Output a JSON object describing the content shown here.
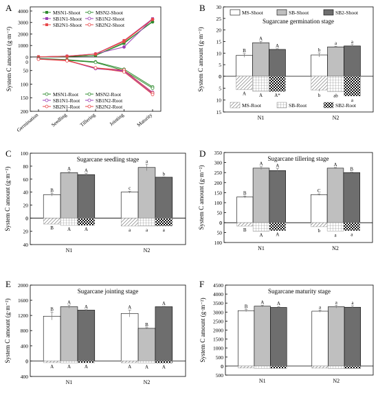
{
  "patterns": {
    "fill_white": "#ffffff",
    "fill_light": "#bfbfbf",
    "fill_dark": "#6e6e6e",
    "axis_color": "#000000"
  },
  "chart_data": [
    {
      "panel": "A",
      "type": "line",
      "ylabel": "System C amount (g·m⁻²)",
      "x": [
        "Germination",
        "Seedling",
        "Tillering",
        "Jointing",
        "Maturity"
      ],
      "upper": {
        "ylim": [
          0,
          4000
        ],
        "yticks": [
          "0",
          "1000",
          "2000",
          "3000",
          "4000"
        ],
        "series": [
          {
            "name": "MSN1-Shoot",
            "color": "#2e8b2e",
            "marker": "square",
            "values": [
              9,
              35,
              130,
              1180,
              3100
            ]
          },
          {
            "name": "MSN2-Shoot",
            "color": "#2e8b2e",
            "marker": "circle",
            "values": [
              9,
              40,
              140,
              1250,
              3050
            ]
          },
          {
            "name": "SB1N1-Shoot",
            "color": "#9b3fb5",
            "marker": "square",
            "values": [
              14,
              70,
              270,
              1430,
              3330
            ]
          },
          {
            "name": "SB1N2-Shoot",
            "color": "#9b3fb5",
            "marker": "circle",
            "values": [
              12,
              78,
              270,
              870,
              3300
            ]
          },
          {
            "name": "SB2N1-Shoot",
            "color": "#e8484a",
            "marker": "square",
            "values": [
              11,
              67,
              260,
              1340,
              3260
            ]
          },
          {
            "name": "SB2N2-Shoot",
            "color": "#e8484a",
            "marker": "circle",
            "values": [
              13,
              63,
              250,
              1420,
              3270
            ]
          }
        ]
      },
      "lower": {
        "ylim": [
          0,
          200
        ],
        "yticks": [
          "0",
          "50",
          "100",
          "150",
          "200"
        ],
        "series": [
          {
            "name": "MSN1-Root",
            "color": "#2e8b2e",
            "marker": "circle",
            "values": [
              5,
              10,
              18,
              45,
              110
            ]
          },
          {
            "name": "MSN2-Root",
            "color": "#2e8b2e",
            "marker": "circle",
            "values": [
              6,
              12,
              20,
              50,
              115
            ]
          },
          {
            "name": "SB1N1-Root",
            "color": "#9b3fb5",
            "marker": "circle",
            "values": [
              7,
              12,
              42,
              50,
              130
            ]
          },
          {
            "name": "SB1N2-Root",
            "color": "#9b3fb5",
            "marker": "circle",
            "values": [
              7,
              13,
              43,
              52,
              135
            ]
          },
          {
            "name": "SB2N1-Root",
            "color": "#e8484a",
            "marker": "circle",
            "values": [
              8,
              12,
              40,
              48,
              132
            ]
          },
          {
            "name": "SB2N2-Root",
            "color": "#e8484a",
            "marker": "circle",
            "values": [
              8,
              14,
              40,
              55,
              138
            ]
          }
        ]
      }
    },
    {
      "panel": "B",
      "type": "bar",
      "title": "Sugarcane germination stage",
      "ylabel": "System C amount (g·m⁻²)",
      "categories": [
        "N1",
        "N2"
      ],
      "upper": {
        "ylim": [
          0,
          30
        ],
        "yticks": [
          "0",
          "5",
          "10",
          "15",
          "20",
          "25",
          "30"
        ],
        "series": [
          {
            "name": "MS-Shoot",
            "fill": "white",
            "values": [
              9,
              9.2
            ],
            "err": [
              0.8,
              0.9
            ],
            "letters": [
              "B",
              "b"
            ]
          },
          {
            "name": "SB-Shoot",
            "fill": "light",
            "values": [
              14.5,
              12.7
            ],
            "err": [
              0.5,
              0.3
            ],
            "letters": [
              "A",
              "a"
            ]
          },
          {
            "name": "SB2-Shoot",
            "fill": "dark",
            "values": [
              11.6,
              13.1
            ],
            "err": [
              0.3,
              0.6
            ],
            "letters": [
              "A",
              "a"
            ]
          }
        ]
      },
      "lower": {
        "ylim": [
          0,
          15
        ],
        "yticks": [
          "0",
          "5",
          "10",
          "15"
        ],
        "series": [
          {
            "name": "MS-Root",
            "pattern": "diag",
            "values": [
              5.6,
              5.8
            ],
            "err": [
              0,
              0.5
            ],
            "letters": [
              "A",
              "b"
            ]
          },
          {
            "name": "SB-Root",
            "pattern": "grid",
            "values": [
              6.3,
              6.5
            ],
            "err": [
              0,
              0
            ],
            "letters": [
              "A",
              "ab"
            ]
          },
          {
            "name": "SB2-Root",
            "pattern": "check",
            "values": [
              6.4,
              8.3
            ],
            "err": [
              0,
              0
            ],
            "letters": [
              "A*",
              "a"
            ]
          }
        ]
      }
    },
    {
      "panel": "C",
      "type": "bar",
      "title": "Sugarcane seedling stage",
      "ylabel": "System C amount (g·m⁻²)",
      "categories": [
        "N1",
        "N2"
      ],
      "upper": {
        "ylim": [
          0,
          100
        ],
        "yticks": [
          "0",
          "20",
          "40",
          "60",
          "80",
          "100"
        ],
        "series": [
          {
            "fill": "white",
            "values": [
              36,
              40
            ],
            "err": [
              2,
              1.5
            ],
            "letters": [
              "B",
              "c"
            ]
          },
          {
            "fill": "light",
            "values": [
              70,
              78
            ],
            "err": [
              1.5,
              5
            ],
            "letters": [
              "A",
              "a"
            ]
          },
          {
            "fill": "dark",
            "values": [
              67,
              63
            ],
            "err": [
              1.5,
              0.5
            ],
            "letters": [
              "A",
              "b"
            ]
          }
        ]
      },
      "lower": {
        "ylim": [
          0,
          40
        ],
        "yticks": [
          "20",
          "40"
        ],
        "zero_label": "0",
        "series": [
          {
            "pattern": "diag",
            "values": [
              9,
              12
            ],
            "err": [
              0,
              0
            ],
            "letters": [
              "B",
              "a"
            ]
          },
          {
            "pattern": "grid",
            "values": [
              11,
              12
            ],
            "err": [
              0,
              0
            ],
            "letters": [
              "A",
              "a"
            ]
          },
          {
            "pattern": "check",
            "values": [
              11,
              12
            ],
            "err": [
              0,
              0
            ],
            "letters": [
              "A",
              "a"
            ]
          }
        ]
      },
      "upper_labels_override": {}
    },
    {
      "panel": "D",
      "type": "bar",
      "title": "Sugarcane tillering stage",
      "ylabel": "System C amount (g·m⁻²)",
      "categories": [
        "N1",
        "N2"
      ],
      "upper": {
        "ylim": [
          0,
          350
        ],
        "yticks": [
          "0",
          "50",
          "100",
          "150",
          "200",
          "250",
          "300",
          "350"
        ],
        "series": [
          {
            "fill": "white",
            "values": [
              128,
              140
            ],
            "err": [
              5,
              4
            ],
            "letters": [
              "B",
              "C"
            ]
          },
          {
            "fill": "light",
            "values": [
              272,
              272
            ],
            "err": [
              7,
              3
            ],
            "letters": [
              "A",
              "A"
            ]
          },
          {
            "fill": "dark",
            "values": [
              260,
              250
            ],
            "err": [
              10,
              2
            ],
            "letters": [
              "A",
              "B"
            ]
          }
        ]
      },
      "lower": {
        "ylim": [
          0,
          100
        ],
        "yticks": [
          "50",
          "100"
        ],
        "zero_label": "0",
        "series": [
          {
            "pattern": "diag",
            "values": [
              17,
              20
            ],
            "err": [
              0,
              0
            ],
            "letters": [
              "B",
              "b"
            ]
          },
          {
            "pattern": "grid",
            "values": [
              43,
              42
            ],
            "err": [
              0,
              0
            ],
            "letters": [
              "A",
              "a"
            ]
          },
          {
            "pattern": "check",
            "values": [
              40,
              40
            ],
            "err": [
              0,
              0
            ],
            "letters": [
              "A",
              "a"
            ]
          }
        ]
      }
    },
    {
      "panel": "E",
      "type": "bar",
      "title": "Sugarcane jointing stage",
      "ylabel": "System C amount (g·m⁻²)",
      "categories": [
        "N1",
        "N2"
      ],
      "upper": {
        "ylim": [
          0,
          2000
        ],
        "yticks": [
          "0",
          "400",
          "800",
          "1200",
          "1600",
          "2000"
        ],
        "series": [
          {
            "fill": "white",
            "values": [
              1180,
              1250
            ],
            "err": [
              100,
              90
            ],
            "letters": [
              "B",
              "A"
            ]
          },
          {
            "fill": "light",
            "values": [
              1430,
              860
            ],
            "err": [
              40,
              20
            ],
            "letters": [
              "A",
              "B"
            ]
          },
          {
            "fill": "dark",
            "values": [
              1340,
              1430
            ],
            "err": [
              10,
              10
            ],
            "letters": [
              "A",
              "A"
            ]
          }
        ]
      },
      "lower": {
        "ylim": [
          0,
          400
        ],
        "yticks": [
          "400"
        ],
        "zero_label": "0",
        "series": [
          {
            "pattern": "diag",
            "values": [
              45,
              48
            ],
            "err": [
              0,
              0
            ],
            "letters": [
              "A",
              "A"
            ]
          },
          {
            "pattern": "grid",
            "values": [
              50,
              52
            ],
            "err": [
              0,
              0
            ],
            "letters": [
              "A",
              "A"
            ]
          },
          {
            "pattern": "check",
            "values": [
              48,
              55
            ],
            "err": [
              0,
              0
            ],
            "letters": [
              "A",
              "A"
            ]
          }
        ]
      }
    },
    {
      "panel": "F",
      "type": "bar",
      "title": "Sugarcane maturity stage",
      "ylabel": "System C amount (g·m⁻²)",
      "categories": [
        "N1",
        "N2"
      ],
      "upper": {
        "ylim": [
          0,
          4500
        ],
        "yticks": [
          "0",
          "500",
          "1000",
          "1500",
          "2000",
          "2500",
          "3000",
          "3500",
          "4000",
          "4500"
        ],
        "series": [
          {
            "fill": "white",
            "values": [
              3080,
              3050
            ],
            "err": [
              60,
              60
            ],
            "letters": [
              "B",
              "a"
            ]
          },
          {
            "fill": "light",
            "values": [
              3330,
              3300
            ],
            "err": [
              50,
              80
            ],
            "letters": [
              "A",
              "a"
            ]
          },
          {
            "fill": "dark",
            "values": [
              3260,
              3270
            ],
            "err": [
              50,
              80
            ],
            "letters": [
              "A",
              "a"
            ]
          }
        ]
      },
      "lower": {
        "ylim": [
          0,
          500
        ],
        "yticks": [
          "500"
        ],
        "zero_label": "0",
        "series": [
          {
            "pattern": "diag",
            "values": [
              110,
              115
            ],
            "err": [
              0,
              0
            ],
            "letters": [
              "",
              ""
            ]
          },
          {
            "pattern": "grid",
            "values": [
              130,
              135
            ],
            "err": [
              0,
              0
            ],
            "letters": [
              "",
              ""
            ]
          },
          {
            "pattern": "check",
            "values": [
              132,
              138
            ],
            "err": [
              0,
              0
            ],
            "letters": [
              "",
              ""
            ]
          }
        ]
      }
    }
  ]
}
